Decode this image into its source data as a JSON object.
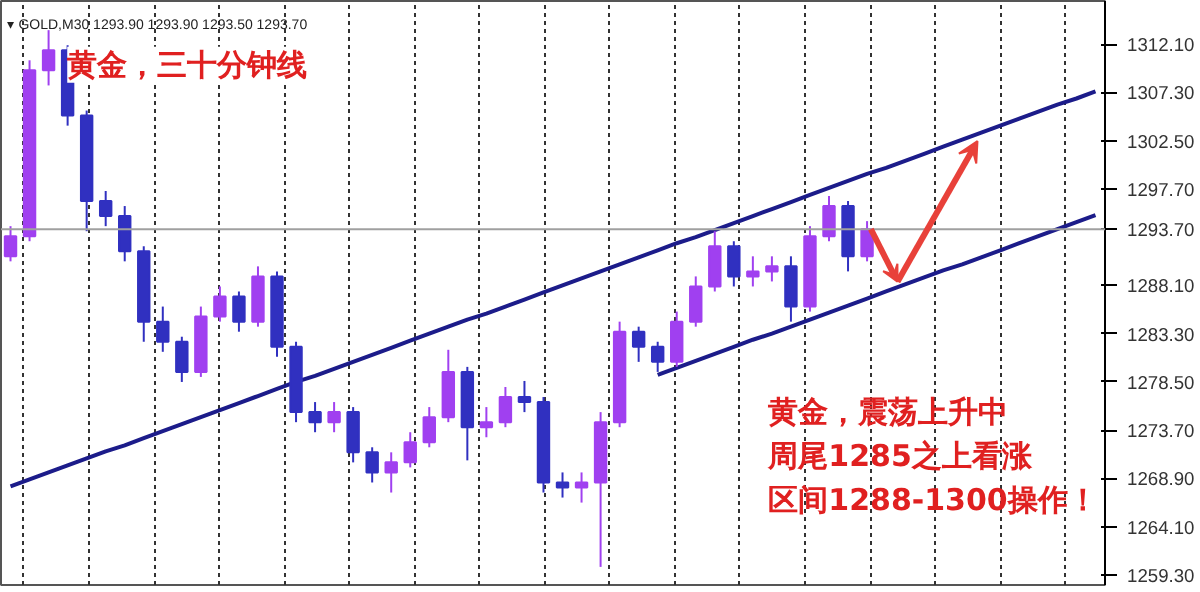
{
  "chart_data": {
    "type": "candlestick",
    "title": "黄金，三十分钟线",
    "annotations": [
      "▾ GOLD,M30  1293.90 1293.90 1293.50 1293.70",
      "黄金，震荡上升中",
      "周尾1285之上看涨",
      "区间1288-1300操作！"
    ],
    "categories": [
      null,
      null,
      null,
      null,
      null,
      null,
      null,
      null,
      null,
      null,
      null,
      null,
      null,
      null,
      null,
      null,
      null,
      null,
      null,
      null,
      null,
      null,
      null,
      null,
      null,
      null,
      null,
      null,
      null,
      null,
      null,
      null,
      null,
      null,
      null,
      null,
      null,
      null,
      null,
      null,
      null,
      null,
      null,
      null,
      null,
      null,
      null,
      null,
      null,
      null,
      null,
      null,
      null,
      null,
      null,
      null,
      null,
      null
    ],
    "ylim": [
      1258.3,
      1316.4
    ],
    "yticks": [
      {
        "value": 1259.3,
        "label": "1259.30"
      },
      {
        "value": 1264.1,
        "label": "1264.10"
      },
      {
        "value": 1268.9,
        "label": "1268.90"
      },
      {
        "value": 1273.7,
        "label": "1273.70"
      },
      {
        "value": 1278.5,
        "label": "1278.50"
      },
      {
        "value": 1283.3,
        "label": "1283.30"
      },
      {
        "value": 1288.1,
        "label": "1288.10"
      },
      {
        "value": 1297.7,
        "label": "1297.70"
      },
      {
        "value": 1302.5,
        "label": "1302.50"
      },
      {
        "value": 1307.3,
        "label": "1307.30"
      },
      {
        "value": 1312.1,
        "label": "1312.10"
      }
    ],
    "tick_labels": "y",
    "grid": "x",
    "colors": [
      "#a040f0",
      "#a040f0",
      "#a040f0",
      "#3030c0",
      "#3030c0",
      "#3030c0",
      "#3030c0",
      "#3030c0",
      "#3030c0",
      "#3030c0",
      "#a040f0",
      "#a040f0",
      "#3030c0",
      "#a040f0",
      "#3030c0",
      "#3030c0",
      "#3030c0",
      "#a040f0",
      "#3030c0",
      "#3030c0",
      "#a040f0",
      "#a040f0",
      "#a040f0",
      "#a040f0",
      "#3030c0",
      "#a040f0",
      "#a040f0",
      "#3030c0",
      "#3030c0",
      "#3030c0",
      "#a040f0",
      "#a040f0",
      "#a040f0",
      "#3030c0",
      "#3030c0",
      "#a040f0",
      "#a040f0",
      "#a040f0",
      "#3030c0",
      "#a040f0",
      "#a040f0",
      "#3030c0",
      "#a040f0",
      "#a040f0",
      "#3030c0",
      "#a040f0",
      null,
      null,
      null,
      null,
      null,
      null,
      null,
      null,
      null,
      null,
      null,
      null
    ],
    "series": [
      {
        "type": "line",
        "color": "#1c1c8a",
        "values": [
          1268.1,
          1268.8,
          1269.5,
          1270.2,
          1270.9,
          1271.6,
          1272.2,
          1272.9,
          1273.6,
          1274.3,
          1275.0,
          1275.7,
          1276.4,
          1277.1,
          1277.8,
          1278.5,
          1279.1,
          1279.8,
          1280.5,
          1281.2,
          1281.9,
          1282.6,
          1283.3,
          1284.0,
          1284.7,
          1285.3,
          1286.0,
          1286.7,
          1287.4,
          1288.1,
          1288.8,
          1289.5,
          1290.2,
          1290.9,
          1291.6,
          1292.3,
          1292.9,
          1293.6,
          1294.3,
          1295.0,
          1295.7,
          1296.4,
          1297.1,
          1297.8,
          1298.5,
          1299.2,
          1299.8,
          1300.5,
          1301.2,
          1301.9,
          1302.6,
          1303.3,
          1304.0,
          1304.7,
          1305.4,
          1306.1,
          1306.7,
          1307.4
        ]
      },
      {
        "type": "line",
        "color": "#1c1c8a",
        "values": [
          null,
          null,
          null,
          null,
          null,
          null,
          null,
          null,
          null,
          null,
          null,
          null,
          null,
          null,
          null,
          null,
          null,
          null,
          null,
          null,
          null,
          null,
          null,
          null,
          null,
          null,
          null,
          null,
          null,
          null,
          null,
          null,
          null,
          null,
          1279.2,
          1279.9,
          1280.6,
          1281.3,
          1282.0,
          1282.7,
          1283.3,
          1284.0,
          1284.7,
          1285.4,
          1286.1,
          1286.8,
          1287.5,
          1288.2,
          1288.9,
          1289.6,
          1290.2,
          1290.9,
          1291.6,
          1292.3,
          1293.0,
          1293.7,
          1294.4,
          1295.1
        ]
      }
    ],
    "ref_lines": [
      {
        "axis": "y",
        "value": 1293.7,
        "label": "1293.70",
        "color": "#a0a0a0"
      }
    ],
    "ohlc": [
      [
        1291.0,
        1294.0,
        1290.5,
        1293.0
      ],
      [
        1293.0,
        1310.5,
        1292.5,
        1309.5
      ],
      [
        1309.5,
        1313.5,
        1308.0,
        1311.5
      ],
      [
        1311.5,
        1312.0,
        1304.0,
        1305.0
      ],
      [
        1305.0,
        1305.5,
        1293.5,
        1296.5
      ],
      [
        1296.5,
        1297.5,
        1294.0,
        1295.0
      ],
      [
        1295.0,
        1296.0,
        1290.5,
        1291.5
      ],
      [
        1291.5,
        1292.0,
        1282.5,
        1284.5
      ],
      [
        1284.5,
        1286.0,
        1281.5,
        1282.5
      ],
      [
        1282.5,
        1283.0,
        1278.5,
        1279.5
      ],
      [
        1279.5,
        1286.0,
        1279.0,
        1285.0
      ],
      [
        1285.0,
        1288.0,
        1284.5,
        1287.0
      ],
      [
        1287.0,
        1287.5,
        1283.5,
        1284.5
      ],
      [
        1284.5,
        1290.0,
        1284.0,
        1289.0
      ],
      [
        1289.0,
        1289.5,
        1281.0,
        1282.0
      ],
      [
        1282.0,
        1282.5,
        1274.5,
        1275.5
      ],
      [
        1275.5,
        1276.5,
        1273.5,
        1274.5
      ],
      [
        1274.5,
        1276.5,
        1273.5,
        1275.5
      ],
      [
        1275.5,
        1276.0,
        1270.5,
        1271.5
      ],
      [
        1271.5,
        1272.0,
        1268.5,
        1269.5
      ],
      [
        1269.5,
        1271.5,
        1267.5,
        1270.5
      ],
      [
        1270.5,
        1273.5,
        1270.0,
        1272.5
      ],
      [
        1272.5,
        1276.0,
        1272.0,
        1275.0
      ],
      [
        1275.0,
        1281.7,
        1274.5,
        1279.5
      ],
      [
        1279.5,
        1280.0,
        1270.7,
        1274.0
      ],
      [
        1274.0,
        1276.0,
        1273.0,
        1274.5
      ],
      [
        1274.5,
        1278.0,
        1274.0,
        1277.0
      ],
      [
        1277.0,
        1278.6,
        1275.5,
        1276.5
      ],
      [
        1276.5,
        1277.0,
        1267.5,
        1268.5
      ],
      [
        1268.5,
        1269.5,
        1267.0,
        1268.0
      ],
      [
        1268.0,
        1269.5,
        1266.5,
        1268.5
      ],
      [
        1268.5,
        1275.5,
        1260.1,
        1274.5
      ],
      [
        1274.5,
        1284.5,
        1274.0,
        1283.5
      ],
      [
        1283.5,
        1284.0,
        1280.5,
        1282.0
      ],
      [
        1282.0,
        1282.5,
        1279.5,
        1280.5
      ],
      [
        1280.5,
        1285.5,
        1280.0,
        1284.5
      ],
      [
        1284.5,
        1289.0,
        1284.0,
        1288.0
      ],
      [
        1288.0,
        1293.5,
        1287.5,
        1292.0
      ],
      [
        1292.0,
        1292.5,
        1288.0,
        1289.0
      ],
      [
        1289.0,
        1291.0,
        1288.0,
        1289.5
      ],
      [
        1289.5,
        1291.0,
        1288.5,
        1290.0
      ],
      [
        1290.0,
        1291.0,
        1284.5,
        1286.0
      ],
      [
        1286.0,
        1294.0,
        1285.5,
        1293.0
      ],
      [
        1293.0,
        1297.0,
        1292.5,
        1296.0
      ],
      [
        1296.0,
        1296.5,
        1289.5,
        1291.0
      ],
      [
        1291.0,
        1294.5,
        1290.5,
        1293.7
      ],
      null,
      null,
      null,
      null,
      null,
      null,
      null,
      null,
      null,
      null,
      null,
      null
    ]
  }
}
